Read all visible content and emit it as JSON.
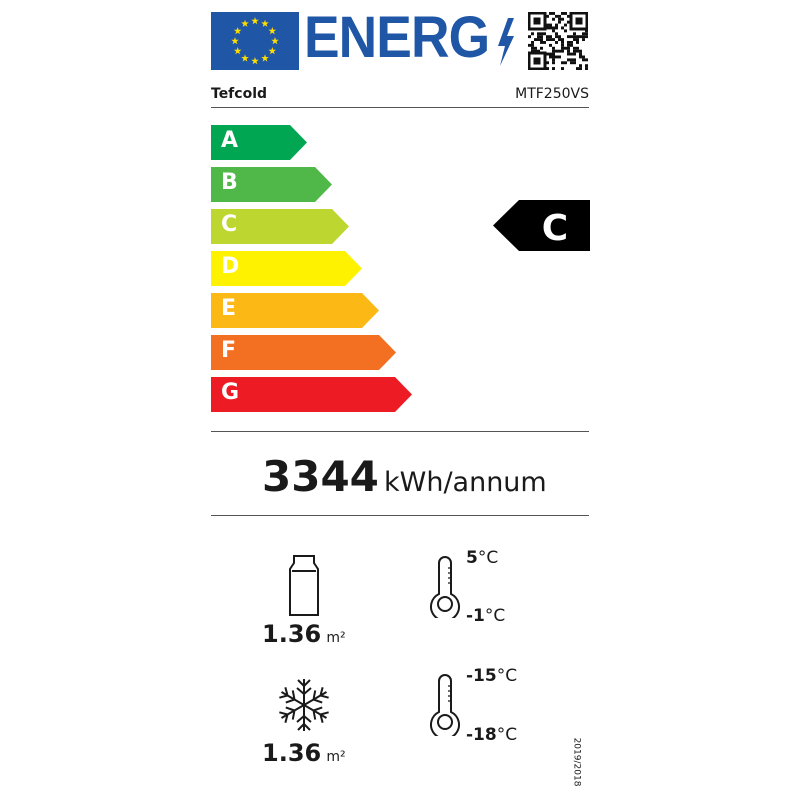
{
  "header": {
    "logo_text": "ENERG",
    "brand": "Tefcold",
    "model": "MTF250VS"
  },
  "colors": {
    "eu_blue": "#1f56a6",
    "star": "#ffdd00",
    "A": "#00a651",
    "B": "#50b848",
    "C": "#bdd630",
    "D": "#fff200",
    "E": "#fcb814",
    "F": "#f36f21",
    "G": "#ed1c24"
  },
  "scale": [
    {
      "label": "A"
    },
    {
      "label": "B"
    },
    {
      "label": "C"
    },
    {
      "label": "D"
    },
    {
      "label": "E"
    },
    {
      "label": "F"
    },
    {
      "label": "G"
    }
  ],
  "rating": "C",
  "consumption": {
    "value": "3344",
    "unit": "kWh/annum"
  },
  "chilled": {
    "area": "1.36",
    "area_unit": "m²",
    "temp_max": "5",
    "temp_min": "-1",
    "temp_unit": "°C"
  },
  "frozen": {
    "area": "1.36",
    "area_unit": "m²",
    "temp_max": "-15",
    "temp_min": "-18",
    "temp_unit": "°C"
  },
  "regulation": "2019/2018"
}
